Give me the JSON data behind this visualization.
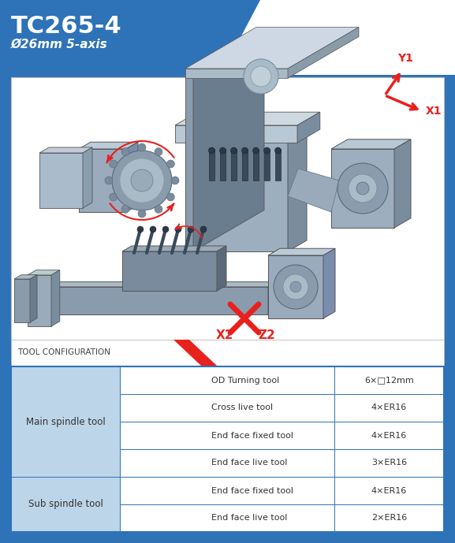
{
  "title": "TC265-4",
  "subtitle": "Ø26mm 5-axis",
  "bg_color": "#2E72B8",
  "white": "#FFFFFF",
  "light_blue_left": "#A8CADE",
  "table_header_label": "TOOL CONFIGURATION",
  "red_color": "#E8211D",
  "table_data": [
    [
      "Main spindle tool",
      "OD Turning tool",
      "6×□12mm"
    ],
    [
      "Main spindle tool",
      "Cross live tool",
      "4×ER16"
    ],
    [
      "Main spindle tool",
      "End face fixed tool",
      "4×ER16"
    ],
    [
      "Main spindle tool",
      "End face live tool",
      "3×ER16"
    ],
    [
      "Sub spindle tool",
      "End face fixed tool",
      "4×ER16"
    ],
    [
      "Sub spindle tool",
      "End face live tool",
      "2×ER16"
    ]
  ]
}
